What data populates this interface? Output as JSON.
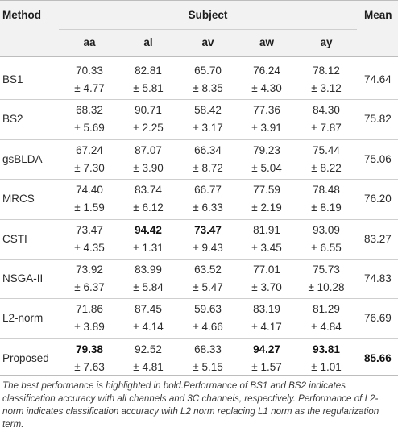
{
  "table": {
    "headers": {
      "method": "Method",
      "subject": "Subject",
      "mean": "Mean",
      "subjects": [
        "aa",
        "al",
        "av",
        "aw",
        "ay"
      ]
    },
    "rows": [
      {
        "method": "BS1",
        "values": [
          "70.33",
          "82.81",
          "65.70",
          "76.24",
          "78.12"
        ],
        "sds": [
          "± 4.77",
          "± 5.81",
          "± 8.35",
          "± 4.30",
          "± 3.12"
        ],
        "mean": "74.64"
      },
      {
        "method": "BS2",
        "values": [
          "68.32",
          "90.71",
          "58.42",
          "77.36",
          "84.30"
        ],
        "sds": [
          "± 5.69",
          "± 2.25",
          "± 3.17",
          "± 3.91",
          "± 7.87"
        ],
        "mean": "75.82"
      },
      {
        "method": "gsBLDA",
        "values": [
          "67.24",
          "87.07",
          "66.34",
          "79.23",
          "75.44"
        ],
        "sds": [
          "± 7.30",
          "± 3.90",
          "± 8.72",
          "± 5.04",
          "± 8.22"
        ],
        "mean": "75.06"
      },
      {
        "method": "MRCS",
        "values": [
          "74.40",
          "83.74",
          "66.77",
          "77.59",
          "78.48"
        ],
        "sds": [
          "± 1.59",
          "± 6.12",
          "± 6.33",
          "± 2.19",
          "± 8.19"
        ],
        "mean": "76.20"
      },
      {
        "method": "CSTI",
        "values": [
          "73.47",
          "94.42",
          "73.47",
          "81.91",
          "93.09"
        ],
        "sds": [
          "± 4.35",
          "± 1.31",
          "± 9.43",
          "± 3.45",
          "± 6.55"
        ],
        "mean": "83.27"
      },
      {
        "method": "NSGA-II",
        "values": [
          "73.92",
          "83.99",
          "63.52",
          "77.01",
          "75.73"
        ],
        "sds": [
          "± 6.37",
          "± 5.84",
          "± 5.47",
          "± 3.70",
          "± 10.28"
        ],
        "mean": "74.83"
      },
      {
        "method": "L2-norm",
        "values": [
          "71.86",
          "87.45",
          "59.63",
          "83.19",
          "81.29"
        ],
        "sds": [
          "± 3.89",
          "± 4.14",
          "± 4.66",
          "± 4.17",
          "± 4.84"
        ],
        "mean": "76.69"
      },
      {
        "method": "Proposed",
        "values": [
          "79.38",
          "92.52",
          "68.33",
          "94.27",
          "93.81"
        ],
        "sds": [
          "± 7.63",
          "± 4.81",
          "± 5.15",
          "± 1.57",
          "± 1.01"
        ],
        "mean": "85.66"
      }
    ],
    "bold_cells": [
      {
        "row": 4,
        "col": 1
      },
      {
        "row": 4,
        "col": 2
      },
      {
        "row": 7,
        "col": 0
      },
      {
        "row": 7,
        "col": 3
      },
      {
        "row": 7,
        "col": 4
      },
      {
        "row": 7,
        "col": "mean"
      }
    ]
  },
  "footnote": "The best performance is highlighted in bold.Performance of BS1 and BS2 indicates classification accuracy with all channels and 3C channels, respectively. Performance of L2-norm indicates classification accuracy with L2 norm replacing L1 norm as the regularization term."
}
